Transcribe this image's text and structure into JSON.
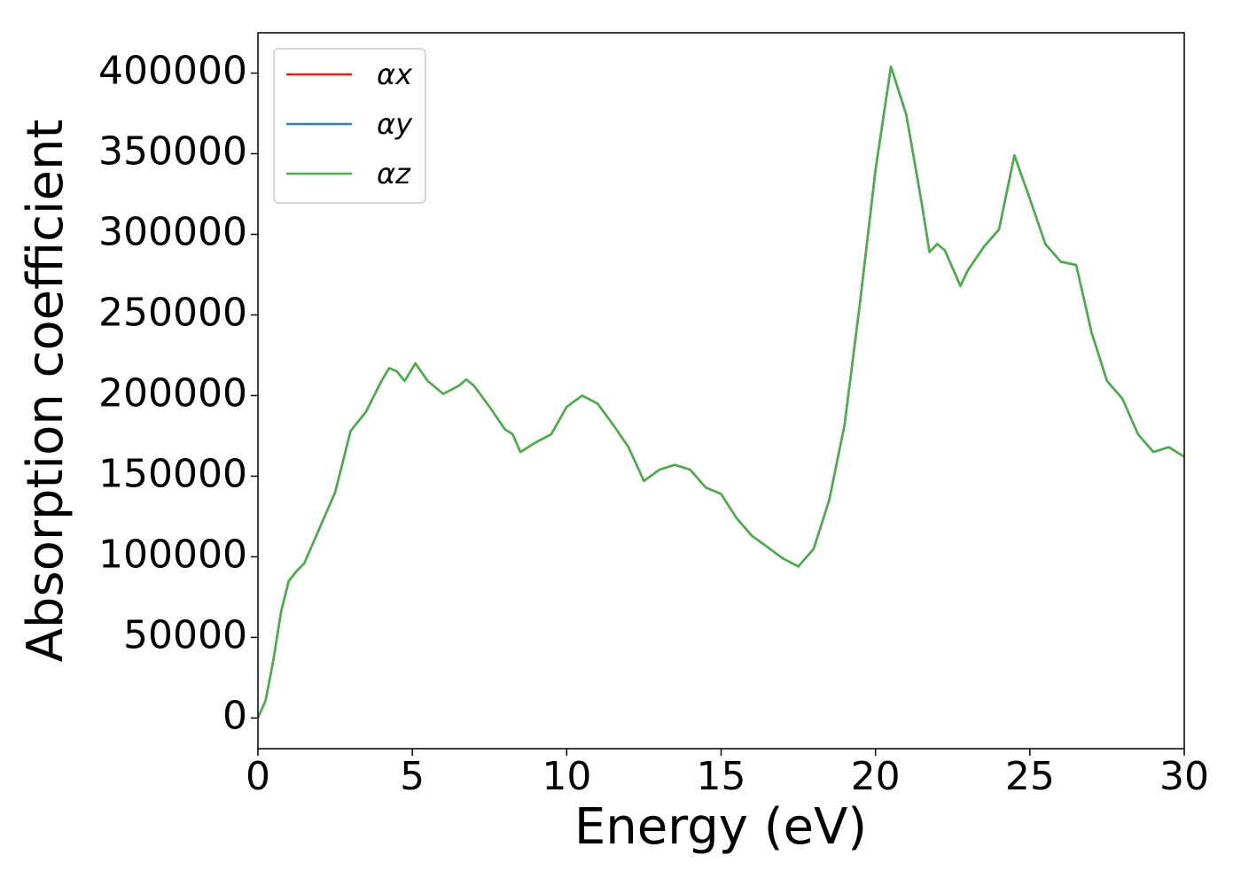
{
  "chart_data": {
    "type": "line",
    "xlabel": "Energy (eV)",
    "ylabel": "Absorption coefficient",
    "x": [
      0,
      0.25,
      0.5,
      0.75,
      1,
      1.25,
      1.5,
      2,
      2.5,
      3,
      3.5,
      4,
      4.25,
      4.5,
      4.75,
      5.1,
      5.5,
      6,
      6.5,
      6.75,
      7,
      7.5,
      8,
      8.25,
      8.5,
      9,
      9.5,
      10,
      10.5,
      11,
      11.5,
      12,
      12.5,
      13,
      13.5,
      14,
      14.5,
      15,
      15.5,
      16,
      16.5,
      17,
      17.5,
      18,
      18.5,
      19,
      19.5,
      20,
      20.5,
      21,
      21.5,
      21.75,
      22,
      22.25,
      22.75,
      23,
      23.5,
      24,
      24.5,
      25,
      25.5,
      26,
      26.5,
      27,
      27.5,
      28,
      28.5,
      29,
      29.5,
      30
    ],
    "series": [
      {
        "name": "αx",
        "color": "#e41a1c",
        "values": [
          0,
          11000,
          36000,
          66000,
          85000,
          91000,
          96000,
          118000,
          140000,
          178000,
          190000,
          209000,
          217000,
          215000,
          209000,
          220000,
          209000,
          201000,
          206000,
          210000,
          206000,
          193000,
          179000,
          176000,
          165000,
          171000,
          176000,
          193000,
          200000,
          195000,
          182000,
          168000,
          147000,
          154000,
          157000,
          154000,
          143000,
          139000,
          124000,
          113000,
          106000,
          99000,
          94000,
          105000,
          135000,
          182000,
          258000,
          340000,
          404000,
          374000,
          319000,
          289000,
          294000,
          290000,
          268000,
          278000,
          292000,
          303000,
          349000,
          322000,
          294000,
          283000,
          281000,
          239000,
          209000,
          198000,
          176000,
          165000,
          168000,
          162000
        ]
      },
      {
        "name": "αy",
        "color": "#377eb8",
        "values": [
          0,
          11000,
          36000,
          66000,
          85000,
          91000,
          96000,
          118000,
          140000,
          178000,
          190000,
          209000,
          217000,
          215000,
          209000,
          220000,
          209000,
          201000,
          206000,
          210000,
          206000,
          193000,
          179000,
          176000,
          165000,
          171000,
          176000,
          193000,
          200000,
          195000,
          182000,
          168000,
          147000,
          154000,
          157000,
          154000,
          143000,
          139000,
          124000,
          113000,
          106000,
          99000,
          94000,
          105000,
          135000,
          182000,
          258000,
          340000,
          404000,
          374000,
          319000,
          289000,
          294000,
          290000,
          268000,
          278000,
          292000,
          303000,
          349000,
          322000,
          294000,
          283000,
          281000,
          239000,
          209000,
          198000,
          176000,
          165000,
          168000,
          162000
        ]
      },
      {
        "name": "αz",
        "color": "#4daf4a",
        "values": [
          0,
          11000,
          36000,
          66000,
          85000,
          91000,
          96000,
          118000,
          140000,
          178000,
          190000,
          209000,
          217000,
          215000,
          209000,
          220000,
          209000,
          201000,
          206000,
          210000,
          206000,
          193000,
          179000,
          176000,
          165000,
          171000,
          176000,
          193000,
          200000,
          195000,
          182000,
          168000,
          147000,
          154000,
          157000,
          154000,
          143000,
          139000,
          124000,
          113000,
          106000,
          99000,
          94000,
          105000,
          135000,
          182000,
          258000,
          340000,
          404000,
          374000,
          319000,
          289000,
          294000,
          290000,
          268000,
          278000,
          292000,
          303000,
          349000,
          322000,
          294000,
          283000,
          281000,
          239000,
          209000,
          198000,
          176000,
          165000,
          168000,
          162000
        ]
      }
    ],
    "xlim": [
      0,
      30
    ],
    "xticks": [
      0,
      5,
      10,
      15,
      20,
      25,
      30
    ],
    "ylim": [
      -19000,
      425000
    ],
    "yticks": [
      0,
      50000,
      100000,
      150000,
      200000,
      250000,
      300000,
      350000,
      400000
    ],
    "grid": false,
    "legend": "upper left"
  }
}
